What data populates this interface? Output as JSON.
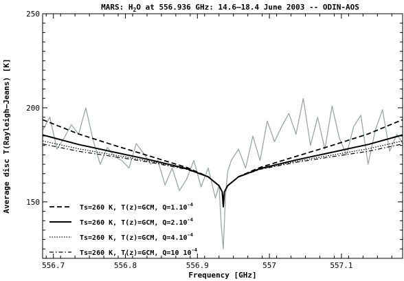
{
  "chart_data": {
    "type": "line",
    "title": "MARS: H₂O at 556.936 GHz: 14.6–18.4 June 2003 -- ODIN-AOS",
    "xlabel": "Frequency [GHz]",
    "ylabel": "Average disc T(Rayleigh–Jeans) [K]",
    "xlim": [
      556.685,
      557.185
    ],
    "ylim": [
      120,
      250
    ],
    "x_ticks": [
      556.7,
      556.8,
      556.9,
      557,
      557.1
    ],
    "x_tick_labels": [
      "556.7",
      "556.8",
      "556.9",
      "557",
      "557.1"
    ],
    "y_ticks": [
      150,
      200,
      250
    ],
    "y_tick_labels": [
      "150",
      "200",
      "250"
    ],
    "line_center": 556.936,
    "legend_position": "bottom-left",
    "grid": false,
    "series": [
      {
        "name": "Ts=260 K, T(z)=GCM, Q=1.10^-4",
        "label_text": "Ts=260 K, T(z)=GCM, Q=1.10",
        "label_exp": "-4",
        "style": "dashed",
        "x": [
          556.685,
          556.735,
          556.785,
          556.835,
          556.885,
          556.915,
          556.93,
          556.9345,
          556.936,
          556.9375,
          556.942,
          556.957,
          556.987,
          557.037,
          557.087,
          557.137,
          557.185
        ],
        "y": [
          193.7,
          186.1,
          180.0,
          174.2,
          168.3,
          163.4,
          158.5,
          155.3,
          148.5,
          155.3,
          158.5,
          163.4,
          168.3,
          174.2,
          180.0,
          186.1,
          193.7
        ]
      },
      {
        "name": "Ts=260 K, T(z)=GCM, Q=2.10^-4",
        "label_text": "Ts=260 K, T(z)=GCM, Q=2.10",
        "label_exp": "-4",
        "style": "solid",
        "x": [
          556.685,
          556.735,
          556.785,
          556.835,
          556.885,
          556.915,
          556.93,
          556.9345,
          556.936,
          556.9375,
          556.942,
          556.957,
          556.987,
          557.037,
          557.087,
          557.137,
          557.185
        ],
        "y": [
          185.6,
          180.5,
          176.4,
          172.3,
          167.7,
          163.3,
          158.6,
          155.3,
          147.4,
          155.3,
          158.6,
          163.3,
          167.7,
          172.3,
          176.4,
          180.5,
          185.6
        ]
      },
      {
        "name": "Ts=260 K, T(z)=GCM, Q=4.10^-4",
        "label_text": "Ts=260 K, T(z)=GCM, Q=4.10",
        "label_exp": "-4",
        "style": "dotted",
        "x": [
          556.685,
          556.735,
          556.785,
          556.835,
          556.885,
          556.915,
          556.93,
          556.9345,
          556.936,
          556.9375,
          556.942,
          556.957,
          556.987,
          557.037,
          557.087,
          557.137,
          557.185
        ],
        "y": [
          182.4,
          178.2,
          174.9,
          171.6,
          167.4,
          163.3,
          158.7,
          155.3,
          147.9,
          155.3,
          158.7,
          163.3,
          167.4,
          171.6,
          174.9,
          178.2,
          182.4
        ]
      },
      {
        "name": "Ts=260 K, T(z)=GCM, Q=10 10^-4",
        "label_text": "Ts=260 K, T(z)=GCM, Q=10 10",
        "label_exp": "-4",
        "style": "dashdot",
        "x": [
          556.685,
          556.735,
          556.785,
          556.835,
          556.885,
          556.915,
          556.93,
          556.9345,
          556.936,
          556.9375,
          556.942,
          556.957,
          556.987,
          557.037,
          557.087,
          557.137,
          557.185
        ],
        "y": [
          180.8,
          176.9,
          174.0,
          171.0,
          167.3,
          163.2,
          158.8,
          155.4,
          148.3,
          155.4,
          158.8,
          163.2,
          167.3,
          171.0,
          174.0,
          176.9,
          180.8
        ]
      },
      {
        "name": "ODIN-AOS spectrum",
        "style": "noisy",
        "color": "#9aa6a6",
        "x": [
          556.685,
          556.695,
          556.705,
          556.715,
          556.725,
          556.735,
          556.745,
          556.755,
          556.765,
          556.775,
          556.785,
          556.795,
          556.805,
          556.815,
          556.825,
          556.835,
          556.845,
          556.855,
          556.865,
          556.875,
          556.885,
          556.895,
          556.905,
          556.915,
          556.925,
          556.93,
          556.933,
          556.936,
          556.939,
          556.942,
          556.947,
          556.957,
          556.967,
          556.977,
          556.987,
          556.997,
          557.007,
          557.017,
          557.027,
          557.037,
          557.047,
          557.057,
          557.067,
          557.077,
          557.087,
          557.097,
          557.107,
          557.117,
          557.127,
          557.137,
          557.147,
          557.157,
          557.167,
          557.177,
          557.185
        ],
        "y": [
          188,
          195,
          178,
          184,
          191,
          186,
          200,
          183,
          170,
          179,
          174,
          172,
          168,
          181,
          176,
          170,
          172,
          159,
          168,
          156,
          162,
          172,
          158,
          168,
          152,
          159,
          138,
          125,
          153,
          166,
          172,
          178,
          168,
          185,
          172,
          193,
          182,
          190,
          197,
          186,
          205,
          180,
          195,
          178,
          201,
          184,
          175,
          190,
          196,
          170,
          188,
          199,
          177,
          186,
          181
        ]
      }
    ]
  }
}
